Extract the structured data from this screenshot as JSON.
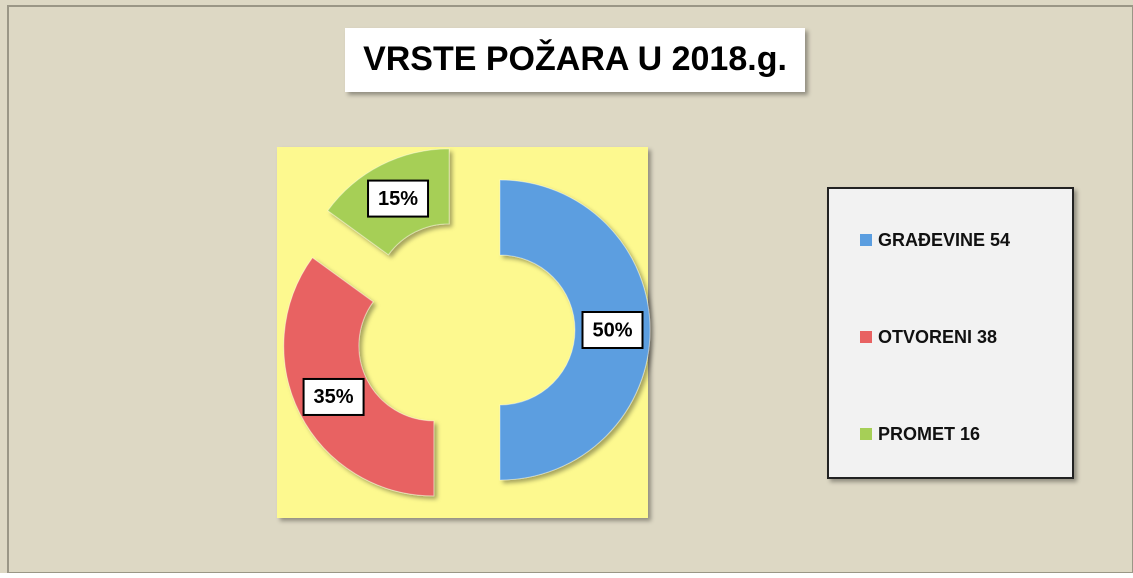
{
  "chart_data": {
    "type": "donut",
    "title": "VRSTE POŽARA U 2018.g.",
    "categories": [
      "GRAĐEVINE 54",
      "OTVORENI 38",
      "PROMET 16"
    ],
    "values": [
      50,
      35,
      15
    ],
    "value_labels": [
      "50%",
      "35%",
      "15%"
    ],
    "colors": [
      "#5b9ee0",
      "#e86262",
      "#a6cf57"
    ],
    "legend": "right"
  }
}
